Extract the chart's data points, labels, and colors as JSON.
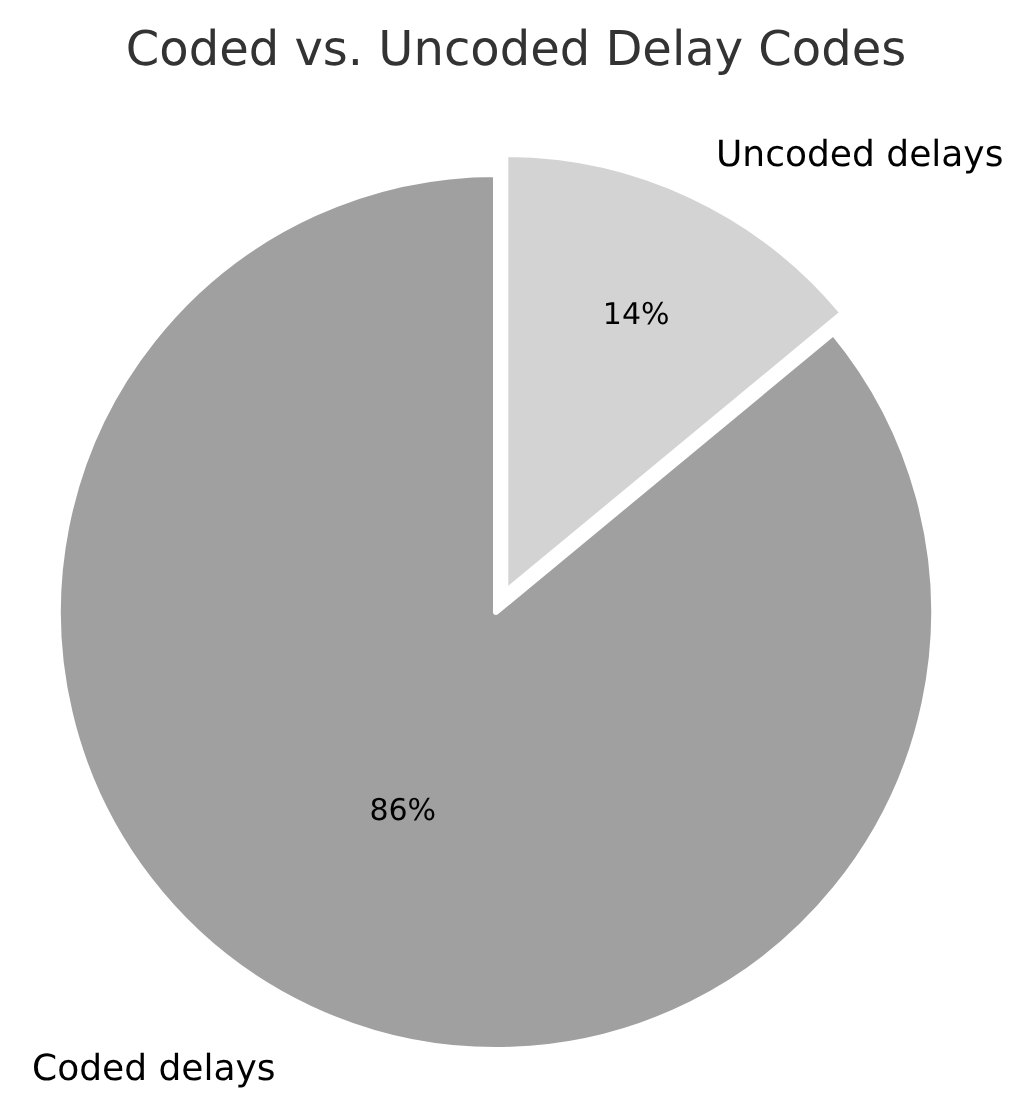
{
  "chart_data": {
    "type": "pie",
    "title": "Coded vs. Uncoded Delay Codes",
    "categories": [
      "Uncoded delays",
      "Coded delays"
    ],
    "values": [
      14,
      86
    ],
    "colors": [
      "#d3d3d3",
      "#a0a0a0"
    ],
    "value_labels": [
      "14%",
      "86%"
    ],
    "legend": false
  }
}
